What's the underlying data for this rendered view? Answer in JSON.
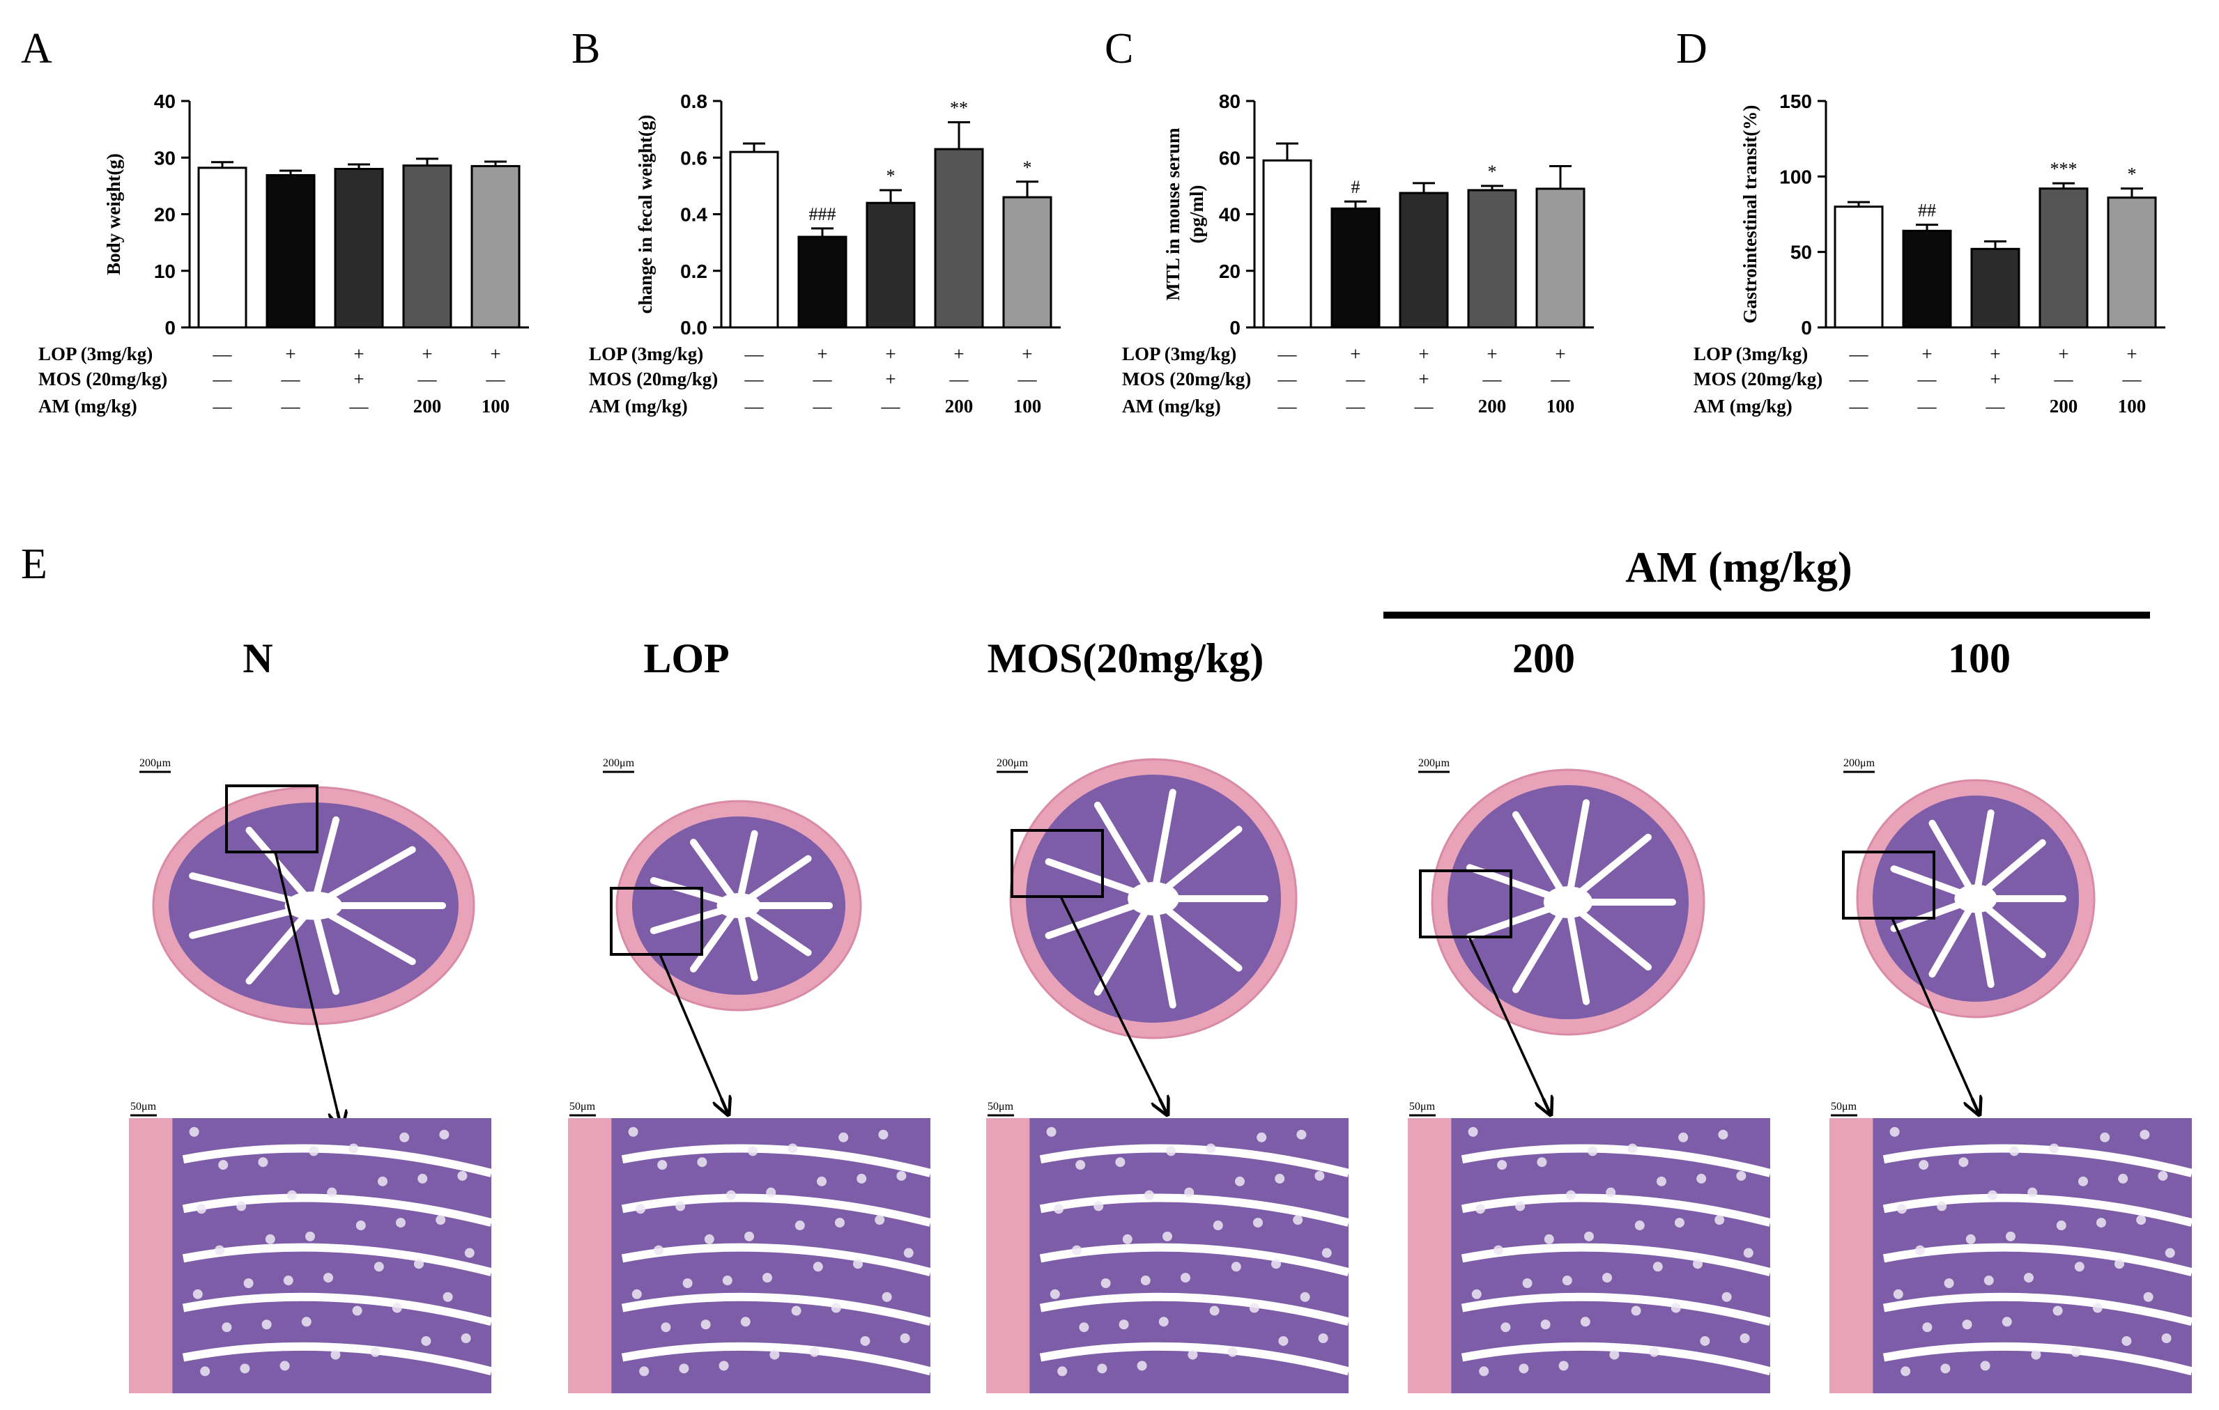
{
  "figure": {
    "panel_letters": [
      "A",
      "B",
      "C",
      "D"
    ],
    "panel_e_letter": "E",
    "treatment_rows": [
      "LOP (3mg/kg)",
      "MOS (20mg/kg)",
      "AM (mg/kg)"
    ],
    "treatment_cells": [
      [
        "—",
        "+",
        "+",
        "+",
        "+"
      ],
      [
        "—",
        "—",
        "+",
        "—",
        "—"
      ],
      [
        "—",
        "—",
        "—",
        "200",
        "100"
      ]
    ],
    "bar_colors": [
      "#ffffff",
      "#0a0a0a",
      "#2b2b2b",
      "#555555",
      "#9a9a9a"
    ]
  },
  "chart_data": [
    {
      "panel": "A",
      "type": "bar",
      "categories": [
        "N",
        "LOP",
        "MOS",
        "AM 200",
        "AM 100"
      ],
      "values": [
        28.2,
        26.9,
        28.0,
        28.6,
        28.5
      ],
      "errors": [
        1.0,
        0.8,
        0.8,
        1.2,
        0.8
      ],
      "significance": [
        "",
        "",
        "",
        "",
        ""
      ],
      "ylabel": "Body  weight(g)",
      "ylim": [
        0,
        40
      ],
      "yticks": [
        "0",
        "10",
        "20",
        "30",
        "40"
      ]
    },
    {
      "panel": "B",
      "type": "bar",
      "categories": [
        "N",
        "LOP",
        "MOS",
        "AM 200",
        "AM 100"
      ],
      "values": [
        0.62,
        0.32,
        0.44,
        0.63,
        0.46
      ],
      "errors": [
        0.03,
        0.03,
        0.045,
        0.095,
        0.055
      ],
      "significance": [
        "",
        "###",
        "*",
        "**",
        "*"
      ],
      "ylabel": "change in fecal weight(g)",
      "ylim": [
        0,
        0.8
      ],
      "yticks": [
        "0.0",
        "0.2",
        "0.4",
        "0.6",
        "0.8"
      ]
    },
    {
      "panel": "C",
      "type": "bar",
      "categories": [
        "N",
        "LOP",
        "MOS",
        "AM 200",
        "AM 100"
      ],
      "values": [
        59,
        42,
        47.5,
        48.5,
        49
      ],
      "errors": [
        6,
        2.5,
        3.5,
        1.5,
        8
      ],
      "significance": [
        "",
        "#",
        "",
        "*",
        ""
      ],
      "ylabel": "MTL in mouse serum\n(pg/ml)",
      "ylim": [
        0,
        80
      ],
      "yticks": [
        "0",
        "20",
        "40",
        "60",
        "80"
      ]
    },
    {
      "panel": "D",
      "type": "bar",
      "categories": [
        "N",
        "LOP",
        "MOS",
        "AM 200",
        "AM 100"
      ],
      "values": [
        80,
        64,
        52,
        92,
        86
      ],
      "errors": [
        3,
        4,
        5,
        3.5,
        6
      ],
      "significance": [
        "",
        "##",
        "",
        "***",
        "*"
      ],
      "ylabel": "Gastrointestinal transit(%)",
      "ylim": [
        0,
        150
      ],
      "yticks": [
        "0",
        "50",
        "100",
        "150"
      ]
    }
  ],
  "histology": {
    "am_header": "AM (mg/kg)",
    "groups": [
      {
        "label": "N",
        "scale_top": "200μm",
        "scale_bottom": "50μm"
      },
      {
        "label": "LOP",
        "scale_top": "200μm",
        "scale_bottom": "50μm"
      },
      {
        "label": "MOS(20mg/kg)",
        "scale_top": "200μm",
        "scale_bottom": "50μm"
      },
      {
        "label": "200",
        "scale_top": "200μm",
        "scale_bottom": "50μm"
      },
      {
        "label": "100",
        "scale_top": "200μm",
        "scale_bottom": "50μm"
      }
    ],
    "tissue_colors": {
      "muscle": "#e9a3b8",
      "mucosa": "#7d5da8",
      "lumen": "#ffffff",
      "goblet": "#ece6f2"
    }
  }
}
